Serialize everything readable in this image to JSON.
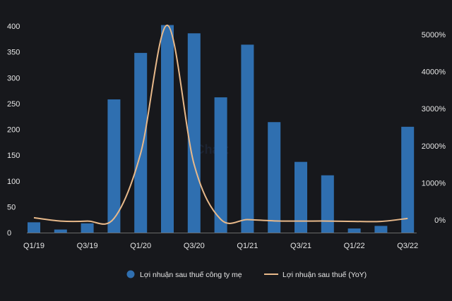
{
  "chart_data": {
    "type": "bar",
    "categories": [
      "Q1/19",
      "Q2/19",
      "Q3/19",
      "Q4/19",
      "Q1/20",
      "Q2/20",
      "Q3/20",
      "Q4/20",
      "Q1/21",
      "Q2/21",
      "Q3/21",
      "Q4/21",
      "Q1/22",
      "Q2/22",
      "Q3/22"
    ],
    "x_tick_labels": [
      "Q1/19",
      "Q3/19",
      "Q1/20",
      "Q3/20",
      "Q1/21",
      "Q3/21",
      "Q1/22",
      "Q3/22"
    ],
    "series": [
      {
        "name": "Lợi nhuận sau thuế công ty mẹ",
        "type": "bar",
        "axis": "left",
        "color": "#2f6fb0",
        "values": [
          20,
          6,
          18,
          258,
          348,
          402,
          386,
          262,
          364,
          214,
          137,
          111,
          8,
          13,
          205
        ]
      },
      {
        "name": "Lợi nhuận sau thuế (YoY)",
        "type": "line",
        "axis": "right",
        "color": "#e8b98a",
        "values": [
          60,
          -30,
          -30,
          40,
          1800,
          5250,
          1500,
          15,
          10,
          -25,
          -30,
          -30,
          -40,
          -40,
          40
        ]
      }
    ],
    "left_axis": {
      "ylim": [
        0,
        400
      ],
      "ticks": [
        "0",
        "50",
        "100",
        "150",
        "200",
        "250",
        "300",
        "350",
        "400"
      ]
    },
    "right_axis": {
      "ylim": [
        -300,
        5500
      ],
      "ticks": [
        "0%",
        "1000%",
        "2000%",
        "3000%",
        "4000%",
        "5000%"
      ]
    },
    "grid": false,
    "legend_position": "bottom"
  }
}
